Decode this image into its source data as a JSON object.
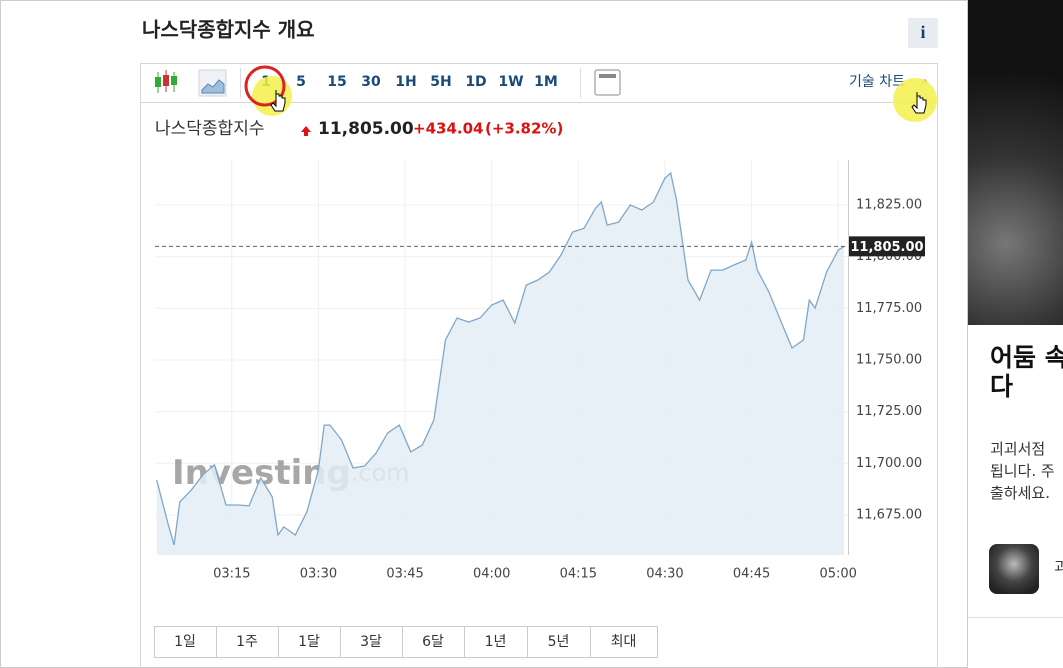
{
  "header": {
    "title": "나스닥종합지수 개요",
    "info": "i"
  },
  "toolbar": {
    "intervals": [
      "1",
      "5",
      "15",
      "30",
      "1H",
      "5H",
      "1D",
      "1W",
      "1M"
    ],
    "tech_chart": "기술 차트",
    "more": "»"
  },
  "quote": {
    "name": "나스닥종합지수",
    "price": "11,805.00",
    "change": "+434.04",
    "change_pct": "(+3.82%)"
  },
  "chart_data": {
    "type": "line",
    "color": "#7fa7c9",
    "fill": "#e3edf5",
    "x": [
      182,
      184,
      185,
      186,
      188,
      190,
      192,
      194,
      196,
      198,
      200,
      202,
      203,
      204,
      206,
      208,
      210,
      211,
      212,
      214,
      216,
      218,
      220,
      222,
      224,
      226,
      228,
      230,
      232,
      234,
      236,
      238,
      240,
      242,
      244,
      246,
      248,
      250,
      252,
      254,
      256,
      258,
      259,
      260,
      262,
      264,
      266,
      268,
      270,
      271,
      272,
      274,
      276,
      278,
      280,
      282,
      284,
      285,
      286,
      288,
      290,
      292,
      294,
      295,
      296,
      298,
      300,
      301
    ],
    "values": [
      11691.9,
      11670.2,
      11660.5,
      11681.3,
      11687.1,
      11694.4,
      11699.2,
      11679.8,
      11679.8,
      11679.4,
      11692.9,
      11683.7,
      11665.3,
      11669.2,
      11665.3,
      11676.5,
      11696.8,
      11718.5,
      11718.5,
      11711.3,
      11697.7,
      11698.7,
      11705.0,
      11714.7,
      11718.5,
      11705.5,
      11708.9,
      11721.0,
      11759.7,
      11770.3,
      11768.4,
      11770.3,
      11776.6,
      11779.0,
      11767.9,
      11786.3,
      11788.7,
      11792.6,
      11800.8,
      11811.9,
      11813.8,
      11823.5,
      11826.4,
      11815.3,
      11816.8,
      11825.0,
      11822.6,
      11826.4,
      11838.0,
      11840.5,
      11827.4,
      11788.7,
      11779.0,
      11793.5,
      11793.5,
      11796.0,
      11798.4,
      11807.0,
      11793.5,
      11782.9,
      11769.3,
      11755.8,
      11759.7,
      11779.0,
      11775.1,
      11792.6,
      11803.2,
      11805.0
    ],
    "xlim": [
      181.7,
      301.7
    ],
    "ylim": [
      11655.6,
      11846.8
    ],
    "xticks": [
      {
        "value": 195,
        "label": "03:15"
      },
      {
        "value": 210,
        "label": "03:30"
      },
      {
        "value": 225,
        "label": "03:45"
      },
      {
        "value": 240,
        "label": "04:00"
      },
      {
        "value": 255,
        "label": "04:15"
      },
      {
        "value": 270,
        "label": "04:30"
      },
      {
        "value": 285,
        "label": "04:45"
      },
      {
        "value": 300,
        "label": "05:00"
      }
    ],
    "yticks": [
      {
        "value": 11675,
        "label": "11,675.00"
      },
      {
        "value": 11700,
        "label": "11,700.00"
      },
      {
        "value": 11725,
        "label": "11,725.00"
      },
      {
        "value": 11750,
        "label": "11,750.00"
      },
      {
        "value": 11775,
        "label": "11,775.00"
      },
      {
        "value": 11800,
        "label": "11,800.00"
      },
      {
        "value": 11825,
        "label": "11,825.00"
      }
    ],
    "grid": true,
    "reference_line": {
      "value": 11805,
      "label": "11,805.00"
    },
    "watermark": [
      "Investing",
      ".com"
    ]
  },
  "ranges": [
    "1일",
    "1주",
    "1달",
    "3달",
    "6달",
    "1년",
    "5년",
    "최대"
  ],
  "sidebar": {
    "title": [
      "어둠 속",
      "다"
    ],
    "body": [
      "괴괴서점",
      "됩니다. 주",
      "출하세요."
    ],
    "author": "괴"
  }
}
